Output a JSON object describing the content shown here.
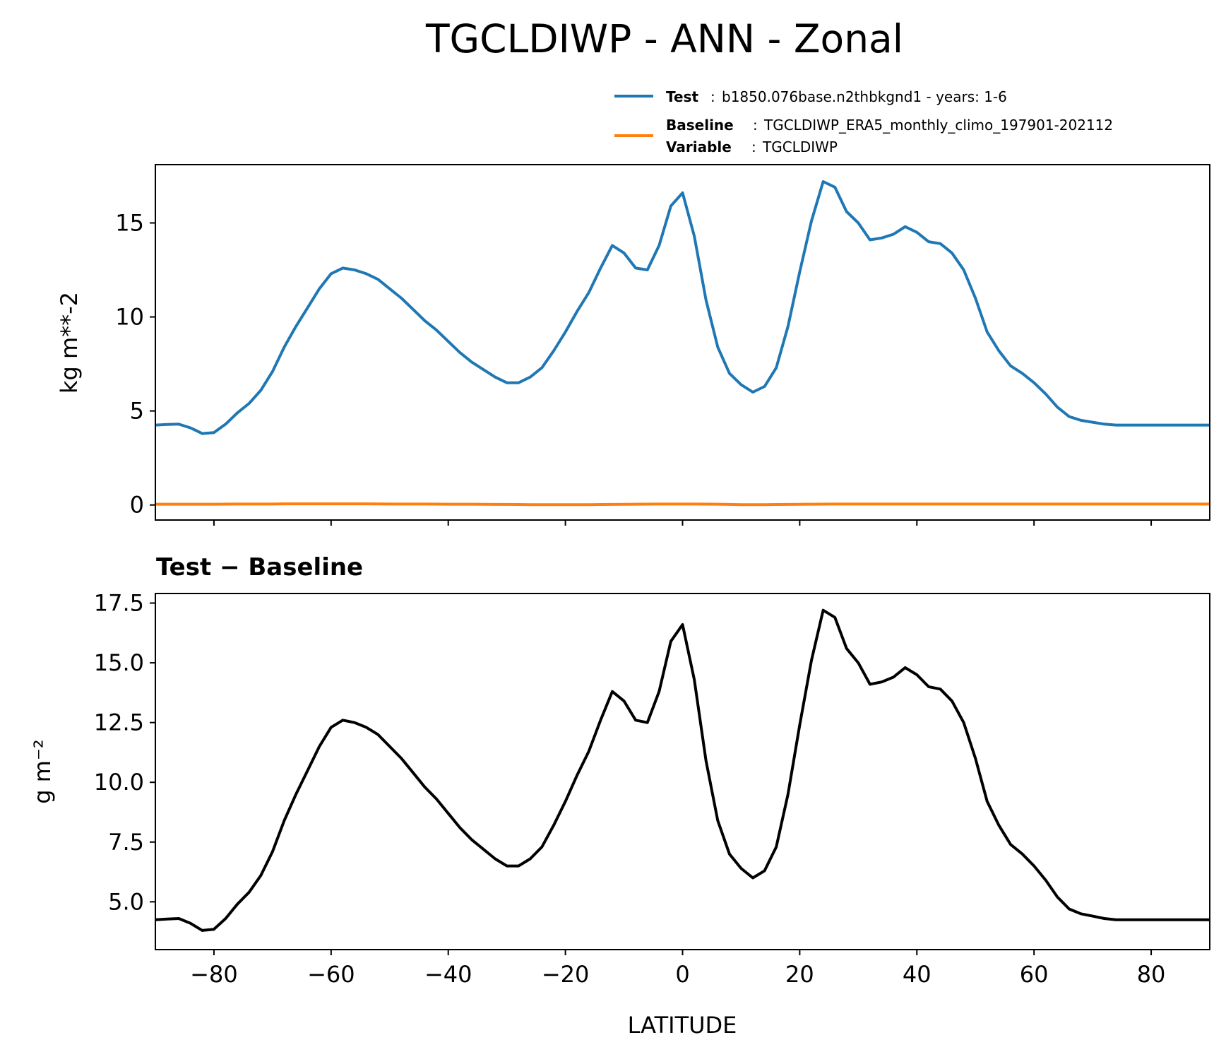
{
  "figure": {
    "title": "TGCLDIWP - ANN - Zonal"
  },
  "legend": {
    "test": {
      "key": "Test",
      "sep": ":",
      "value": "b1850.076base.n2thbkgnd1 - years: 1-6",
      "color": "#1f77b4"
    },
    "baseline": {
      "key": "Baseline",
      "sep": ":",
      "value": "TGCLDIWP_ERA5_monthly_climo_197901-202112",
      "color": "#ff7f0e"
    },
    "variable": {
      "key": "Variable",
      "sep": ":",
      "value": "TGCLDIWP"
    }
  },
  "chart_data": [
    {
      "type": "line",
      "panel": "top",
      "ylabel": "kg m**-2",
      "xlim": [
        -90,
        90
      ],
      "ylim": [
        -0.8,
        18.1
      ],
      "yticks": [
        0,
        5,
        10,
        15
      ],
      "ytick_labels": [
        "0",
        "5",
        "10",
        "15"
      ],
      "xticks": [
        -80,
        -60,
        -40,
        -20,
        0,
        20,
        40,
        60,
        80
      ],
      "x": [
        -90,
        -88,
        -86,
        -84,
        -82,
        -80,
        -78,
        -76,
        -74,
        -72,
        -70,
        -68,
        -66,
        -64,
        -62,
        -60,
        -58,
        -56,
        -54,
        -52,
        -50,
        -48,
        -46,
        -44,
        -42,
        -40,
        -38,
        -36,
        -34,
        -32,
        -30,
        -28,
        -26,
        -24,
        -22,
        -20,
        -18,
        -16,
        -14,
        -12,
        -10,
        -8,
        -6,
        -4,
        -2,
        0,
        2,
        4,
        6,
        8,
        10,
        12,
        14,
        16,
        18,
        20,
        22,
        24,
        26,
        28,
        30,
        32,
        34,
        36,
        38,
        40,
        42,
        44,
        46,
        48,
        50,
        52,
        54,
        56,
        58,
        60,
        62,
        64,
        66,
        68,
        70,
        72,
        74,
        76,
        78,
        80,
        82,
        84,
        86,
        88,
        90
      ],
      "series": [
        {
          "name": "Test",
          "color": "#1f77b4",
          "values": [
            4.25,
            4.28,
            4.3,
            4.1,
            3.8,
            3.85,
            4.3,
            4.9,
            5.4,
            6.1,
            7.1,
            8.4,
            9.5,
            10.5,
            11.5,
            12.3,
            12.6,
            12.5,
            12.3,
            12.0,
            11.5,
            11.0,
            10.4,
            9.8,
            9.3,
            8.7,
            8.1,
            7.6,
            7.2,
            6.8,
            6.5,
            6.5,
            6.8,
            7.3,
            8.2,
            9.2,
            10.3,
            11.3,
            12.6,
            13.8,
            13.4,
            12.6,
            12.5,
            13.8,
            15.9,
            16.6,
            14.3,
            10.9,
            8.4,
            7.0,
            6.4,
            6.0,
            6.3,
            7.3,
            9.5,
            12.4,
            15.1,
            17.2,
            16.9,
            15.6,
            15.0,
            14.1,
            14.2,
            14.4,
            14.8,
            14.5,
            14.0,
            13.9,
            13.4,
            12.5,
            11.0,
            9.2,
            8.2,
            7.4,
            7.0,
            6.5,
            5.9,
            5.2,
            4.7,
            4.5,
            4.4,
            4.3,
            4.25,
            4.25,
            4.25,
            4.25,
            4.25,
            4.25,
            4.25,
            4.25,
            4.25
          ]
        },
        {
          "name": "Baseline",
          "color": "#ff7f0e",
          "values": [
            0.04,
            0.04,
            0.04,
            0.04,
            0.04,
            0.04,
            0.045,
            0.05,
            0.05,
            0.05,
            0.05,
            0.06,
            0.06,
            0.06,
            0.06,
            0.06,
            0.06,
            0.06,
            0.06,
            0.055,
            0.05,
            0.05,
            0.05,
            0.05,
            0.045,
            0.04,
            0.04,
            0.04,
            0.035,
            0.03,
            0.03,
            0.025,
            0.02,
            0.02,
            0.02,
            0.02,
            0.02,
            0.02,
            0.025,
            0.03,
            0.035,
            0.04,
            0.045,
            0.05,
            0.05,
            0.05,
            0.05,
            0.045,
            0.04,
            0.03,
            0.02,
            0.02,
            0.02,
            0.025,
            0.03,
            0.035,
            0.04,
            0.045,
            0.05,
            0.05,
            0.05,
            0.05,
            0.05,
            0.05,
            0.05,
            0.05,
            0.05,
            0.05,
            0.05,
            0.05,
            0.05,
            0.05,
            0.05,
            0.05,
            0.05,
            0.05,
            0.05,
            0.05,
            0.05,
            0.05,
            0.05,
            0.05,
            0.05,
            0.05,
            0.05,
            0.05,
            0.05,
            0.05,
            0.05,
            0.05,
            0.05
          ]
        }
      ]
    },
    {
      "type": "line",
      "panel": "bottom",
      "title": "Test − Baseline",
      "xlabel": "LATITUDE",
      "ylabel": "g m⁻²",
      "xlim": [
        -90,
        90
      ],
      "ylim": [
        3.0,
        17.9
      ],
      "yticks": [
        5.0,
        7.5,
        10.0,
        12.5,
        15.0,
        17.5
      ],
      "ytick_labels": [
        "5.0",
        "7.5",
        "10.0",
        "12.5",
        "15.0",
        "17.5"
      ],
      "xticks": [
        -80,
        -60,
        -40,
        -20,
        0,
        20,
        40,
        60,
        80
      ],
      "xtick_labels": [
        "−80",
        "−60",
        "−40",
        "−20",
        "0",
        "20",
        "40",
        "60",
        "80"
      ],
      "x": [
        -90,
        -88,
        -86,
        -84,
        -82,
        -80,
        -78,
        -76,
        -74,
        -72,
        -70,
        -68,
        -66,
        -64,
        -62,
        -60,
        -58,
        -56,
        -54,
        -52,
        -50,
        -48,
        -46,
        -44,
        -42,
        -40,
        -38,
        -36,
        -34,
        -32,
        -30,
        -28,
        -26,
        -24,
        -22,
        -20,
        -18,
        -16,
        -14,
        -12,
        -10,
        -8,
        -6,
        -4,
        -2,
        0,
        2,
        4,
        6,
        8,
        10,
        12,
        14,
        16,
        18,
        20,
        22,
        24,
        26,
        28,
        30,
        32,
        34,
        36,
        38,
        40,
        42,
        44,
        46,
        48,
        50,
        52,
        54,
        56,
        58,
        60,
        62,
        64,
        66,
        68,
        70,
        72,
        74,
        76,
        78,
        80,
        82,
        84,
        86,
        88,
        90
      ],
      "series": [
        {
          "name": "Test - Baseline",
          "color": "#000000",
          "values": [
            4.25,
            4.28,
            4.3,
            4.1,
            3.8,
            3.85,
            4.3,
            4.9,
            5.4,
            6.1,
            7.1,
            8.4,
            9.5,
            10.5,
            11.5,
            12.3,
            12.6,
            12.5,
            12.3,
            12.0,
            11.5,
            11.0,
            10.4,
            9.8,
            9.3,
            8.7,
            8.1,
            7.6,
            7.2,
            6.8,
            6.5,
            6.5,
            6.8,
            7.3,
            8.2,
            9.2,
            10.3,
            11.3,
            12.6,
            13.8,
            13.4,
            12.6,
            12.5,
            13.8,
            15.9,
            16.6,
            14.3,
            10.9,
            8.4,
            7.0,
            6.4,
            6.0,
            6.3,
            7.3,
            9.5,
            12.4,
            15.1,
            17.2,
            16.9,
            15.6,
            15.0,
            14.1,
            14.2,
            14.4,
            14.8,
            14.5,
            14.0,
            13.9,
            13.4,
            12.5,
            11.0,
            9.2,
            8.2,
            7.4,
            7.0,
            6.5,
            5.9,
            5.2,
            4.7,
            4.5,
            4.4,
            4.3,
            4.25,
            4.25,
            4.25,
            4.25,
            4.25,
            4.25,
            4.25,
            4.25,
            4.25
          ]
        }
      ]
    }
  ]
}
